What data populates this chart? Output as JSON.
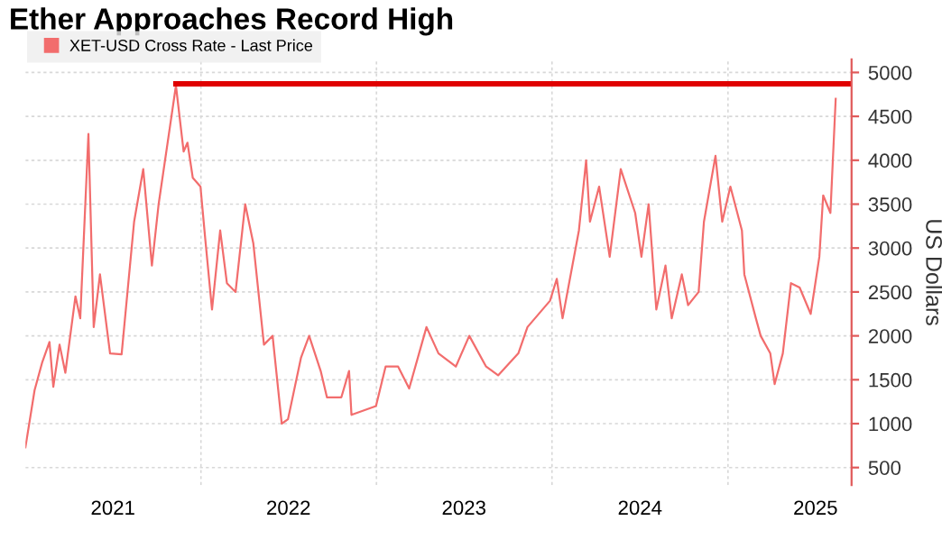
{
  "chart_data": {
    "type": "line",
    "title": "Ether Approaches Record High",
    "ylabel": "US Dollars",
    "xlim": [
      "2021-01-01",
      "2025-09-15"
    ],
    "ylim": [
      300,
      5150
    ],
    "xticks": [
      {
        "value": "2021-07-02",
        "label": "2021"
      },
      {
        "value": "2022-01-01",
        "label": null
      },
      {
        "value": "2022-07-02",
        "label": "2022"
      },
      {
        "value": "2023-01-01",
        "label": null
      },
      {
        "value": "2023-07-02",
        "label": "2023"
      },
      {
        "value": "2024-01-01",
        "label": null
      },
      {
        "value": "2024-07-02",
        "label": "2024"
      },
      {
        "value": "2025-01-01",
        "label": null
      },
      {
        "value": "2025-07-02",
        "label": "2025"
      }
    ],
    "yticks": [
      500,
      1000,
      1500,
      2000,
      2500,
      3000,
      3500,
      4000,
      4500,
      5000
    ],
    "grid": true,
    "legend": "top left",
    "series": [
      {
        "name": "XET-USD Cross Rate - Last Price",
        "color": "#f26d6d",
        "x": [
          "2021-01-01",
          "2021-01-20",
          "2021-02-05",
          "2021-02-20",
          "2021-02-28",
          "2021-03-13",
          "2021-03-25",
          "2021-04-15",
          "2021-04-25",
          "2021-05-12",
          "2021-05-23",
          "2021-06-05",
          "2021-06-26",
          "2021-07-20",
          "2021-08-15",
          "2021-09-03",
          "2021-09-21",
          "2021-10-05",
          "2021-10-29",
          "2021-11-10",
          "2021-11-26",
          "2021-12-04",
          "2021-12-15",
          "2021-12-31",
          "2022-01-10",
          "2022-01-24",
          "2022-02-10",
          "2022-02-24",
          "2022-03-14",
          "2022-04-03",
          "2022-04-20",
          "2022-05-12",
          "2022-05-30",
          "2022-06-18",
          "2022-07-01",
          "2022-07-28",
          "2022-08-14",
          "2022-09-07",
          "2022-09-20",
          "2022-10-20",
          "2022-11-05",
          "2022-11-10",
          "2022-12-31",
          "2023-01-20",
          "2023-02-15",
          "2023-03-10",
          "2023-04-15",
          "2023-05-10",
          "2023-06-15",
          "2023-07-13",
          "2023-08-17",
          "2023-09-11",
          "2023-10-23",
          "2023-11-11",
          "2023-12-28",
          "2024-01-11",
          "2024-01-23",
          "2024-02-26",
          "2024-03-12",
          "2024-03-20",
          "2024-04-08",
          "2024-04-30",
          "2024-05-23",
          "2024-06-22",
          "2024-07-05",
          "2024-07-20",
          "2024-08-05",
          "2024-08-24",
          "2024-09-06",
          "2024-09-27",
          "2024-10-10",
          "2024-11-01",
          "2024-11-12",
          "2024-12-06",
          "2024-12-20",
          "2025-01-06",
          "2025-01-30",
          "2025-02-04",
          "2025-02-28",
          "2025-03-10",
          "2025-03-30",
          "2025-04-08",
          "2025-04-25",
          "2025-05-12",
          "2025-05-30",
          "2025-06-22",
          "2025-07-10",
          "2025-07-18",
          "2025-08-02",
          "2025-08-13"
        ],
        "values": [
          730,
          1380,
          1700,
          1930,
          1420,
          1900,
          1580,
          2450,
          2200,
          4300,
          2100,
          2700,
          1800,
          1790,
          3300,
          3900,
          2800,
          3500,
          4400,
          4850,
          4100,
          4200,
          3800,
          3700,
          3100,
          2300,
          3200,
          2600,
          2500,
          3500,
          3050,
          1900,
          2000,
          1000,
          1050,
          1750,
          2000,
          1600,
          1300,
          1300,
          1600,
          1100,
          1200,
          1650,
          1650,
          1400,
          2100,
          1800,
          1650,
          2000,
          1650,
          1550,
          1800,
          2100,
          2400,
          2650,
          2200,
          3200,
          4000,
          3300,
          3700,
          2900,
          3900,
          3400,
          2900,
          3500,
          2300,
          2800,
          2200,
          2700,
          2350,
          2500,
          3300,
          4050,
          3300,
          3700,
          3200,
          2700,
          2200,
          2000,
          1800,
          1450,
          1800,
          2600,
          2550,
          2250,
          2900,
          3600,
          3400,
          4700
        ]
      },
      {
        "type": "line",
        "color": "#e00000",
        "x": [
          "2021-11-10",
          "2025-09-15"
        ],
        "values": [
          4870,
          4870
        ]
      }
    ]
  }
}
